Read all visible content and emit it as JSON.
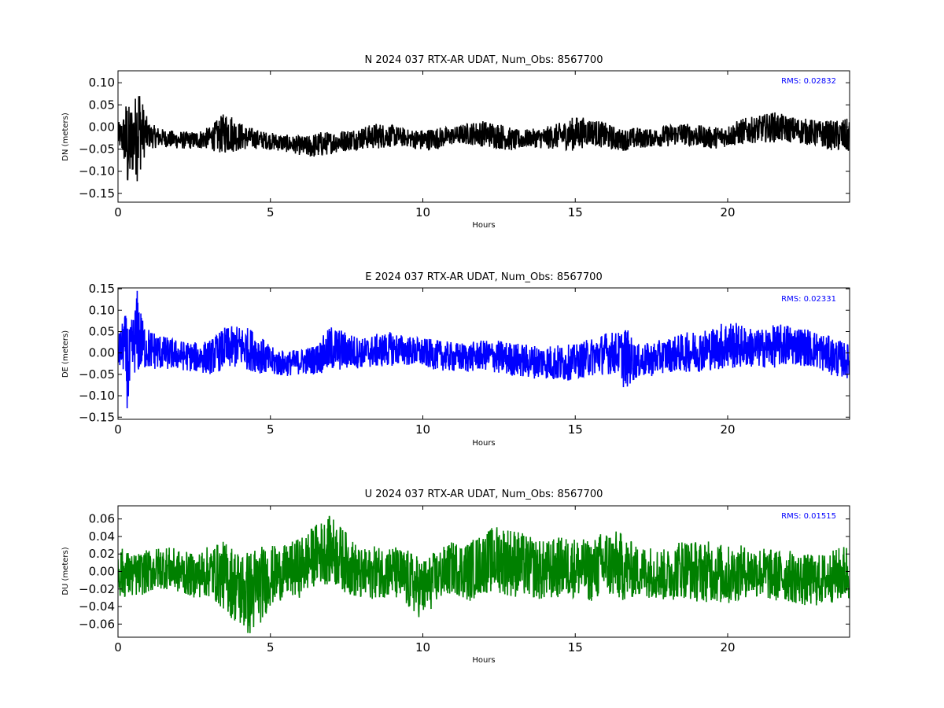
{
  "chart_data": [
    {
      "type": "line",
      "title": "N 2024 037 RTX-AR  UDAT, Num_Obs: 8567700",
      "xlabel": "Hours",
      "ylabel": "DN (meters)",
      "xlim": [
        0,
        24
      ],
      "ylim": [
        -0.17,
        0.127
      ],
      "xticks": [
        0,
        5,
        10,
        15,
        20
      ],
      "yticks": [
        -0.15,
        -0.1,
        -0.05,
        0.0,
        0.05,
        0.1
      ],
      "ytick_labels": [
        "−0.15",
        "−0.10",
        "−0.05",
        "0.00",
        "0.05",
        "0.10"
      ],
      "xtick_labels": [
        "0",
        "5",
        "10",
        "15",
        "20"
      ],
      "annotation": "RMS:  0.02832",
      "annotation_color": "#0000ff",
      "series_color": "#000000",
      "grid": false,
      "series": [
        {
          "x": [
            0,
            0.1,
            0.2,
            0.3,
            0.35,
            0.45,
            0.55,
            0.65,
            0.8,
            1.0,
            1.5,
            2.0,
            2.5,
            3.0,
            3.3,
            3.6,
            3.9,
            4.3,
            4.8,
            5.3,
            5.8,
            6.2,
            6.6,
            7.0,
            7.5,
            8.0,
            8.5,
            9.0,
            9.5,
            10.0,
            10.5,
            11.0,
            11.5,
            12.0,
            12.5,
            13.0,
            13.5,
            14.0,
            14.5,
            15.0,
            15.5,
            16.0,
            16.5,
            17.0,
            17.5,
            18.0,
            18.5,
            19.0,
            19.5,
            20.0,
            20.5,
            21.0,
            21.5,
            22.0,
            22.5,
            23.0,
            23.5,
            24.0
          ],
          "values": [
            -0.02,
            -0.02,
            -0.025,
            -0.04,
            -0.05,
            -0.03,
            -0.02,
            0.0,
            -0.01,
            -0.02,
            -0.025,
            -0.03,
            -0.03,
            -0.025,
            -0.02,
            -0.01,
            -0.02,
            -0.025,
            -0.03,
            -0.035,
            -0.04,
            -0.045,
            -0.04,
            -0.035,
            -0.03,
            -0.025,
            -0.02,
            -0.02,
            -0.025,
            -0.03,
            -0.025,
            -0.02,
            -0.015,
            -0.015,
            -0.02,
            -0.03,
            -0.025,
            -0.025,
            -0.02,
            -0.015,
            -0.01,
            -0.02,
            -0.03,
            -0.025,
            -0.025,
            -0.02,
            -0.015,
            -0.02,
            -0.025,
            -0.02,
            -0.01,
            -0.005,
            0.0,
            -0.005,
            -0.01,
            -0.015,
            -0.02,
            -0.02
          ],
          "amplitude": [
            0.03,
            0.035,
            0.06,
            0.12,
            0.1,
            0.09,
            0.08,
            0.13,
            0.07,
            0.03,
            0.02,
            0.02,
            0.02,
            0.025,
            0.04,
            0.05,
            0.035,
            0.025,
            0.02,
            0.02,
            0.02,
            0.025,
            0.03,
            0.025,
            0.025,
            0.025,
            0.03,
            0.025,
            0.02,
            0.025,
            0.025,
            0.02,
            0.025,
            0.03,
            0.03,
            0.025,
            0.02,
            0.025,
            0.03,
            0.04,
            0.03,
            0.03,
            0.025,
            0.025,
            0.02,
            0.025,
            0.025,
            0.025,
            0.025,
            0.025,
            0.03,
            0.03,
            0.035,
            0.03,
            0.03,
            0.03,
            0.035,
            0.04
          ]
        }
      ]
    },
    {
      "type": "line",
      "title": "E 2024 037 RTX-AR  UDAT, Num_Obs: 8567700",
      "xlabel": "Hours",
      "ylabel": "DE (meters)",
      "xlim": [
        0,
        24
      ],
      "ylim": [
        -0.155,
        0.152
      ],
      "xticks": [
        0,
        5,
        10,
        15,
        20
      ],
      "yticks": [
        -0.15,
        -0.1,
        -0.05,
        0.0,
        0.05,
        0.1,
        0.15
      ],
      "ytick_labels": [
        "−0.15",
        "−0.10",
        "−0.05",
        "0.00",
        "0.05",
        "0.10",
        "0.15"
      ],
      "xtick_labels": [
        "0",
        "5",
        "10",
        "15",
        "20"
      ],
      "annotation": "RMS:  0.02331",
      "annotation_color": "#0000ff",
      "series_color": "#0000ff",
      "grid": false,
      "series": [
        {
          "x": [
            0,
            0.1,
            0.2,
            0.3,
            0.35,
            0.45,
            0.55,
            0.65,
            0.8,
            1.0,
            1.5,
            2.0,
            2.5,
            3.0,
            3.5,
            4.0,
            4.5,
            5.0,
            5.5,
            6.0,
            6.5,
            7.0,
            7.5,
            8.0,
            8.5,
            9.0,
            9.5,
            10.0,
            10.5,
            11.0,
            11.5,
            12.0,
            12.5,
            13.0,
            13.5,
            14.0,
            14.5,
            15.0,
            15.5,
            16.0,
            16.5,
            16.6,
            17.0,
            17.5,
            18.0,
            18.5,
            19.0,
            19.5,
            20.0,
            20.5,
            21.0,
            21.5,
            22.0,
            22.5,
            23.0,
            23.5,
            24.0
          ],
          "values": [
            0.0,
            0.01,
            0.02,
            -0.02,
            -0.05,
            0.0,
            0.03,
            0.05,
            0.02,
            0.01,
            0.0,
            -0.005,
            -0.01,
            -0.01,
            0.01,
            0.015,
            0.005,
            -0.02,
            -0.025,
            -0.02,
            -0.015,
            0.01,
            0.005,
            0.0,
            0.005,
            0.01,
            0.005,
            0.0,
            -0.005,
            -0.01,
            -0.01,
            -0.005,
            -0.01,
            -0.015,
            -0.02,
            -0.02,
            -0.025,
            -0.02,
            -0.01,
            0.0,
            0.0,
            -0.01,
            -0.02,
            -0.015,
            -0.005,
            0.0,
            0.005,
            0.01,
            0.02,
            0.015,
            0.01,
            0.015,
            0.02,
            0.015,
            0.005,
            -0.01,
            -0.02
          ],
          "amplitude": [
            0.04,
            0.05,
            0.07,
            0.11,
            0.1,
            0.08,
            0.08,
            0.11,
            0.06,
            0.05,
            0.04,
            0.035,
            0.035,
            0.04,
            0.05,
            0.05,
            0.05,
            0.035,
            0.03,
            0.03,
            0.035,
            0.055,
            0.045,
            0.035,
            0.04,
            0.04,
            0.035,
            0.035,
            0.035,
            0.035,
            0.035,
            0.035,
            0.04,
            0.04,
            0.04,
            0.04,
            0.045,
            0.04,
            0.045,
            0.05,
            0.05,
            0.08,
            0.04,
            0.04,
            0.04,
            0.045,
            0.05,
            0.05,
            0.06,
            0.05,
            0.045,
            0.05,
            0.05,
            0.045,
            0.045,
            0.045,
            0.04
          ]
        }
      ]
    },
    {
      "type": "line",
      "title": "U 2024 037 RTX-AR  UDAT, Num_Obs: 8567700",
      "xlabel": "Hours",
      "ylabel": "DU (meters)",
      "xlim": [
        0,
        24
      ],
      "ylim": [
        -0.075,
        0.075
      ],
      "xticks": [
        0,
        5,
        10,
        15,
        20
      ],
      "yticks": [
        -0.06,
        -0.04,
        -0.02,
        0.0,
        0.02,
        0.04,
        0.06
      ],
      "ytick_labels": [
        "−0.06",
        "−0.04",
        "−0.02",
        "0.00",
        "0.02",
        "0.04",
        "0.06"
      ],
      "xtick_labels": [
        "0",
        "5",
        "10",
        "15",
        "20"
      ],
      "annotation": "RMS:  0.01515",
      "annotation_color": "#0000ff",
      "series_color": "#008000",
      "grid": false,
      "series": [
        {
          "x": [
            0,
            0.5,
            1.0,
            1.5,
            2.0,
            2.5,
            3.0,
            3.5,
            4.0,
            4.3,
            4.5,
            5.0,
            5.5,
            6.0,
            6.5,
            7.0,
            7.5,
            8.0,
            8.5,
            9.0,
            9.5,
            10.0,
            10.5,
            11.0,
            11.5,
            12.0,
            12.5,
            13.0,
            13.5,
            14.0,
            14.5,
            15.0,
            15.5,
            16.0,
            16.5,
            17.0,
            17.5,
            18.0,
            18.5,
            19.0,
            19.5,
            20.0,
            20.5,
            21.0,
            21.5,
            22.0,
            22.5,
            23.0,
            23.5,
            24.0
          ],
          "values": [
            0.0,
            -0.005,
            0.0,
            0.005,
            0.0,
            -0.005,
            0.0,
            -0.005,
            -0.02,
            -0.025,
            -0.02,
            -0.005,
            0.0,
            0.005,
            0.02,
            0.025,
            0.01,
            -0.005,
            0.0,
            0.0,
            -0.01,
            -0.02,
            -0.005,
            0.005,
            0.0,
            0.01,
            0.015,
            0.01,
            0.005,
            0.0,
            0.005,
            0.005,
            0.0,
            0.01,
            0.005,
            0.0,
            0.0,
            -0.005,
            0.005,
            0.0,
            0.0,
            -0.005,
            0.0,
            0.0,
            -0.005,
            -0.005,
            -0.01,
            -0.01,
            -0.005,
            0.0
          ],
          "amplitude": [
            0.03,
            0.025,
            0.025,
            0.025,
            0.025,
            0.025,
            0.03,
            0.04,
            0.045,
            0.05,
            0.05,
            0.035,
            0.03,
            0.035,
            0.035,
            0.04,
            0.035,
            0.03,
            0.03,
            0.03,
            0.035,
            0.035,
            0.03,
            0.03,
            0.035,
            0.035,
            0.04,
            0.04,
            0.035,
            0.035,
            0.035,
            0.035,
            0.035,
            0.04,
            0.04,
            0.03,
            0.03,
            0.03,
            0.035,
            0.035,
            0.035,
            0.035,
            0.03,
            0.03,
            0.03,
            0.03,
            0.03,
            0.03,
            0.03,
            0.035
          ]
        }
      ]
    }
  ]
}
